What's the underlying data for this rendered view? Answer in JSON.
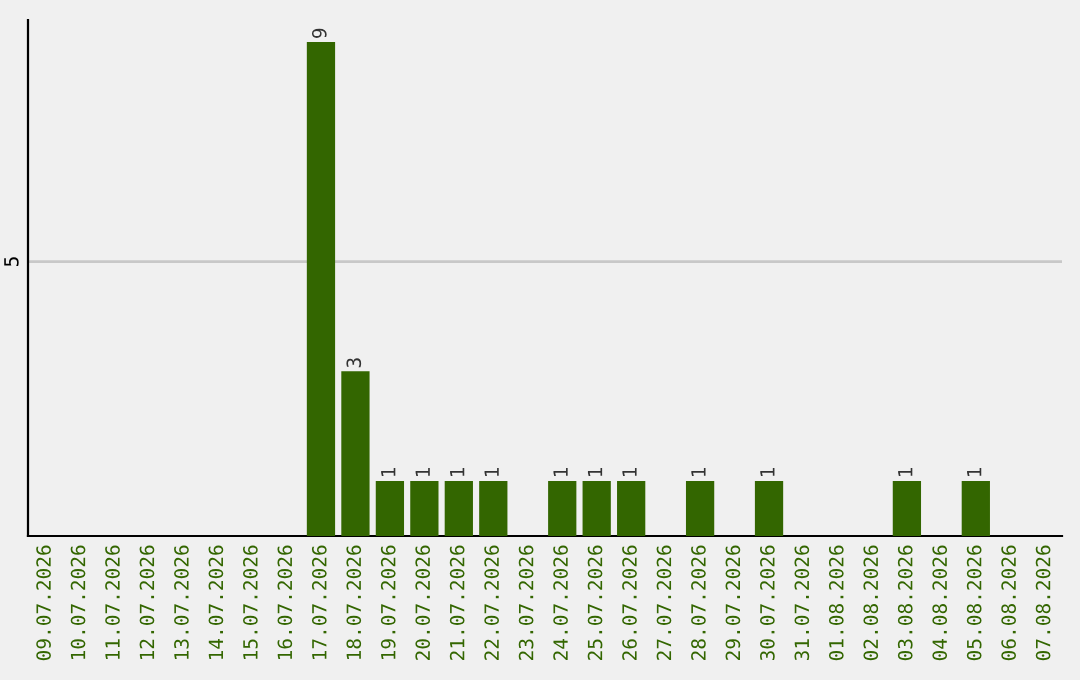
{
  "chart_data": {
    "type": "bar",
    "categories": [
      "09.07.2026",
      "10.07.2026",
      "11.07.2026",
      "12.07.2026",
      "13.07.2026",
      "14.07.2026",
      "15.07.2026",
      "16.07.2026",
      "17.07.2026",
      "18.07.2026",
      "19.07.2026",
      "20.07.2026",
      "21.07.2026",
      "22.07.2026",
      "23.07.2026",
      "24.07.2026",
      "25.07.2026",
      "26.07.2026",
      "27.07.2026",
      "28.07.2026",
      "29.07.2026",
      "30.07.2026",
      "31.07.2026",
      "01.08.2026",
      "02.08.2026",
      "03.08.2026",
      "04.08.2026",
      "05.08.2026",
      "06.08.2026",
      "07.08.2026"
    ],
    "values": [
      0,
      0,
      0,
      0,
      0,
      0,
      0,
      0,
      9,
      3,
      1,
      1,
      1,
      1,
      0,
      1,
      1,
      1,
      0,
      1,
      0,
      1,
      0,
      0,
      0,
      1,
      0,
      1,
      0,
      0
    ],
    "value_labels": [
      null,
      null,
      null,
      null,
      null,
      null,
      null,
      null,
      "9",
      "3",
      "1",
      "1",
      "1",
      "1",
      null,
      "1",
      "1",
      "1",
      null,
      "1",
      null,
      "1",
      null,
      null,
      null,
      "1",
      null,
      "1",
      null,
      null
    ],
    "color": "#336600",
    "ylim": [
      0,
      9.4
    ],
    "yticks": [
      5
    ],
    "grid": "y"
  }
}
